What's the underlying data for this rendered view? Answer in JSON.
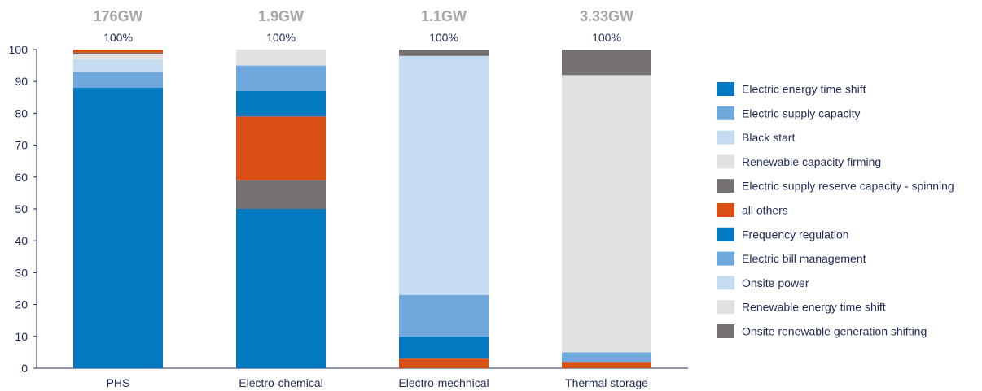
{
  "chart_data": {
    "type": "bar",
    "stacked": true,
    "categories": [
      "PHS",
      "Electro-chemical",
      "Electro-mechnical",
      "Thermal storage"
    ],
    "capacity_labels": [
      "176GW",
      "1.9GW",
      "1.1GW",
      "3.33GW"
    ],
    "total_labels": [
      "100%",
      "100%",
      "100%",
      "100%"
    ],
    "ylim": [
      0,
      100
    ],
    "yticks": [
      0,
      10,
      20,
      30,
      40,
      50,
      60,
      70,
      80,
      90,
      100
    ],
    "grid": false,
    "legend_position": "right",
    "series": [
      {
        "name": "Electric energy time shift",
        "color": "#0279c1",
        "values": [
          88,
          50,
          0,
          0
        ]
      },
      {
        "name": "Electric supply capacity",
        "color": "#6fa8dc",
        "values": [
          5,
          0,
          0,
          0
        ]
      },
      {
        "name": "Black start",
        "color": "#c5dcf0",
        "values": [
          4,
          0,
          0,
          0
        ]
      },
      {
        "name": "Renewable capacity firming",
        "color": "#e2e1e1",
        "values": [
          1.5,
          0,
          0,
          0
        ]
      },
      {
        "name": "Electric supply reserve capacity - spinning",
        "color": "#767171",
        "values": [
          0.5,
          9,
          0,
          0
        ]
      },
      {
        "name": "all others",
        "color": "#d94f14",
        "values": [
          1,
          20,
          3,
          2
        ]
      },
      {
        "name": "Frequency regulation",
        "color": "#0279c1",
        "values": [
          0,
          8,
          7,
          0
        ]
      },
      {
        "name": "Electric bill management",
        "color": "#6fa8dc",
        "values": [
          0,
          8,
          13,
          3
        ]
      },
      {
        "name": "Onsite power",
        "color": "#c5dcf0",
        "values": [
          0,
          0,
          75,
          0
        ]
      },
      {
        "name": "Renewable energy time shift",
        "color": "#e2e1e1",
        "values": [
          0,
          5,
          0,
          87
        ]
      },
      {
        "name": "Onsite renewable generation shifting",
        "color": "#767171",
        "values": [
          0,
          0,
          2,
          8
        ]
      }
    ]
  }
}
